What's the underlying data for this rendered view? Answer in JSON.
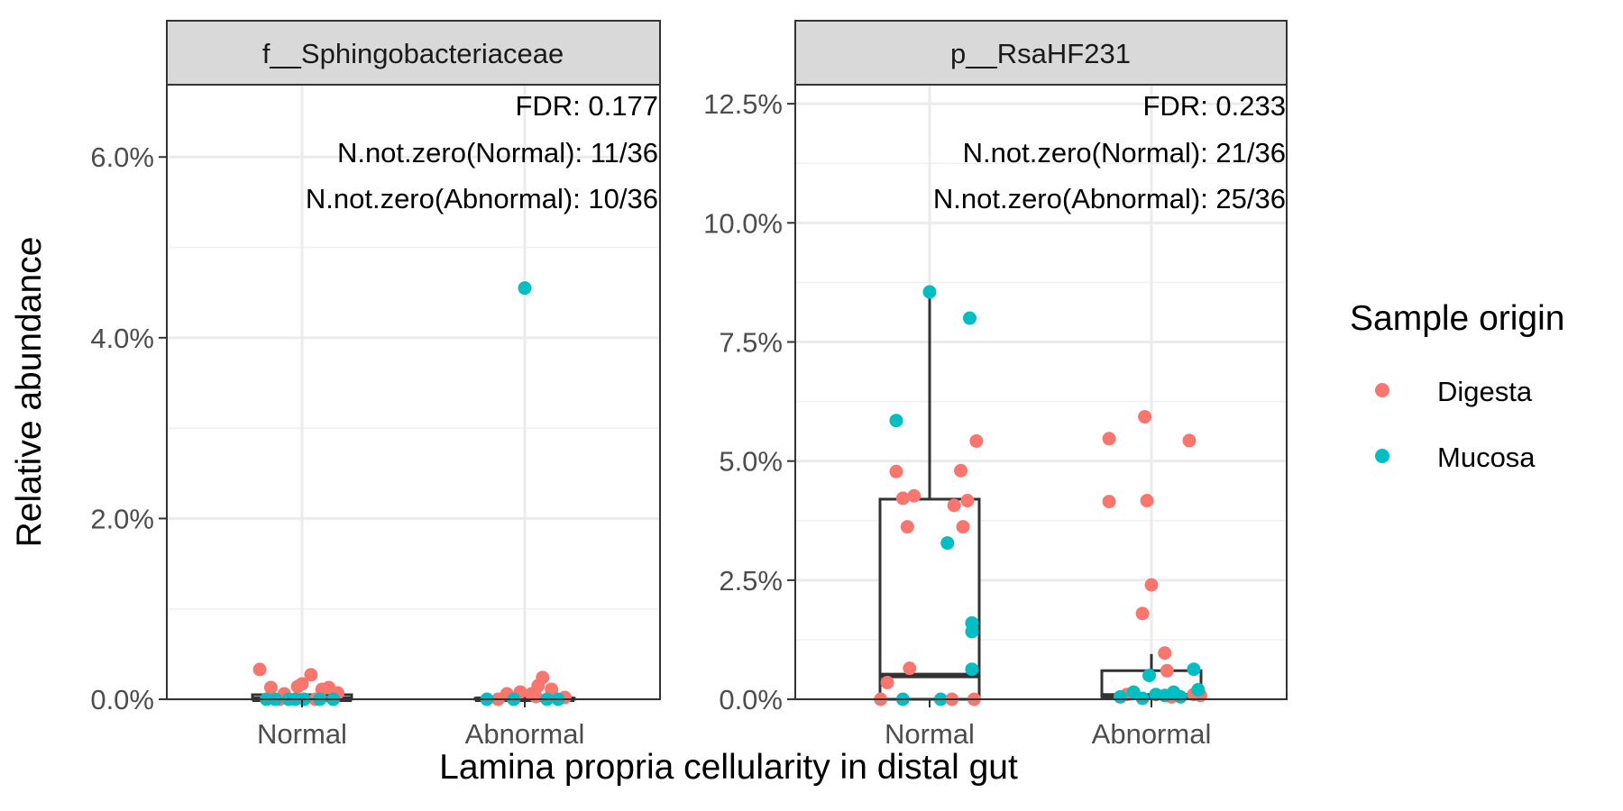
{
  "chart_data": {
    "type": "box",
    "xlabel": "Lamina propria cellularity in distal gut",
    "ylabel": "Relative abundance",
    "categories": [
      "Normal",
      "Abnormal"
    ],
    "legend": {
      "title": "Sample origin",
      "position": "right",
      "entries": [
        {
          "name": "Digesta",
          "color": "#F8766D"
        },
        {
          "name": "Mucosa",
          "color": "#00BFC4"
        }
      ]
    },
    "grid": true,
    "panels": [
      {
        "strip": "f__Sphingobacteriaceae",
        "annotations": [
          "FDR: 0.177",
          "N.not.zero(Normal): 11/36",
          "N.not.zero(Abnormal): 10/36"
        ],
        "ylim": [
          0,
          6.8
        ],
        "yticks": [
          0,
          2,
          4,
          6
        ],
        "ytick_labels": [
          "0.0%",
          "2.0%",
          "4.0%",
          "6.0%"
        ],
        "boxes": [
          {
            "category": "Normal",
            "q1": 0,
            "median": 0,
            "q3": 0.05,
            "whisker_low": 0,
            "whisker_high": 0.05
          },
          {
            "category": "Abnormal",
            "q1": 0,
            "median": 0,
            "q3": 0.01,
            "whisker_low": 0,
            "whisker_high": 0.01
          }
        ],
        "points": [
          {
            "category": "Normal",
            "origin": "Digesta",
            "dx": -0.19,
            "y": 0.33
          },
          {
            "category": "Normal",
            "origin": "Digesta",
            "dx": -0.14,
            "y": 0.13
          },
          {
            "category": "Normal",
            "origin": "Digesta",
            "dx": -0.08,
            "y": 0.06
          },
          {
            "category": "Normal",
            "origin": "Digesta",
            "dx": -0.02,
            "y": 0.14
          },
          {
            "category": "Normal",
            "origin": "Digesta",
            "dx": 0.0,
            "y": 0.17
          },
          {
            "category": "Normal",
            "origin": "Digesta",
            "dx": 0.04,
            "y": 0.27
          },
          {
            "category": "Normal",
            "origin": "Digesta",
            "dx": 0.09,
            "y": 0.11
          },
          {
            "category": "Normal",
            "origin": "Digesta",
            "dx": 0.12,
            "y": 0.13
          },
          {
            "category": "Normal",
            "origin": "Digesta",
            "dx": 0.16,
            "y": 0.07
          },
          {
            "category": "Normal",
            "origin": "Digesta",
            "dx": -0.1,
            "y": 0.0
          },
          {
            "category": "Normal",
            "origin": "Digesta",
            "dx": 0.06,
            "y": 0.0
          },
          {
            "category": "Normal",
            "origin": "Mucosa",
            "dx": -0.16,
            "y": 0.0
          },
          {
            "category": "Normal",
            "origin": "Mucosa",
            "dx": -0.12,
            "y": 0.0
          },
          {
            "category": "Normal",
            "origin": "Mucosa",
            "dx": -0.06,
            "y": 0.0
          },
          {
            "category": "Normal",
            "origin": "Mucosa",
            "dx": -0.03,
            "y": 0.0
          },
          {
            "category": "Normal",
            "origin": "Mucosa",
            "dx": 0.01,
            "y": 0.0
          },
          {
            "category": "Normal",
            "origin": "Mucosa",
            "dx": 0.08,
            "y": 0.0
          },
          {
            "category": "Normal",
            "origin": "Mucosa",
            "dx": 0.14,
            "y": 0.0
          },
          {
            "category": "Abnormal",
            "origin": "Mucosa",
            "dx": 0.0,
            "y": 4.55
          },
          {
            "category": "Abnormal",
            "origin": "Digesta",
            "dx": -0.08,
            "y": 0.06
          },
          {
            "category": "Abnormal",
            "origin": "Digesta",
            "dx": -0.02,
            "y": 0.08
          },
          {
            "category": "Abnormal",
            "origin": "Digesta",
            "dx": 0.03,
            "y": 0.06
          },
          {
            "category": "Abnormal",
            "origin": "Digesta",
            "dx": 0.06,
            "y": 0.15
          },
          {
            "category": "Abnormal",
            "origin": "Digesta",
            "dx": 0.08,
            "y": 0.24
          },
          {
            "category": "Abnormal",
            "origin": "Digesta",
            "dx": 0.12,
            "y": 0.11
          },
          {
            "category": "Abnormal",
            "origin": "Digesta",
            "dx": 0.05,
            "y": 0.03
          },
          {
            "category": "Abnormal",
            "origin": "Digesta",
            "dx": -0.12,
            "y": 0.0
          },
          {
            "category": "Abnormal",
            "origin": "Digesta",
            "dx": 0.18,
            "y": 0.02
          },
          {
            "category": "Abnormal",
            "origin": "Mucosa",
            "dx": -0.17,
            "y": 0.0
          },
          {
            "category": "Abnormal",
            "origin": "Mucosa",
            "dx": -0.05,
            "y": 0.0
          },
          {
            "category": "Abnormal",
            "origin": "Mucosa",
            "dx": 0.1,
            "y": 0.0
          },
          {
            "category": "Abnormal",
            "origin": "Mucosa",
            "dx": 0.15,
            "y": 0.0
          }
        ]
      },
      {
        "strip": "p__RsaHF231",
        "annotations": [
          "FDR: 0.233",
          "N.not.zero(Normal): 21/36",
          "N.not.zero(Abnormal): 25/36"
        ],
        "ylim": [
          0,
          12.9
        ],
        "yticks": [
          0,
          2.5,
          5,
          7.5,
          10,
          12.5
        ],
        "ytick_labels": [
          "0.0%",
          "2.5%",
          "5.0%",
          "7.5%",
          "10.0%",
          "12.5%"
        ],
        "boxes": [
          {
            "category": "Normal",
            "q1": 0,
            "median": 0.5,
            "q3": 4.2,
            "whisker_low": 0,
            "whisker_high": 8.55
          },
          {
            "category": "Abnormal",
            "q1": 0.05,
            "median": 0.07,
            "q3": 0.6,
            "whisker_low": 0,
            "whisker_high": 0.95
          }
        ],
        "points": [
          {
            "category": "Normal",
            "origin": "Mucosa",
            "dx": 0.0,
            "y": 8.55
          },
          {
            "category": "Normal",
            "origin": "Mucosa",
            "dx": 0.18,
            "y": 8.0
          },
          {
            "category": "Normal",
            "origin": "Mucosa",
            "dx": -0.15,
            "y": 5.85
          },
          {
            "category": "Normal",
            "origin": "Mucosa",
            "dx": 0.08,
            "y": 3.28
          },
          {
            "category": "Normal",
            "origin": "Mucosa",
            "dx": 0.19,
            "y": 1.6
          },
          {
            "category": "Normal",
            "origin": "Mucosa",
            "dx": 0.19,
            "y": 1.42
          },
          {
            "category": "Normal",
            "origin": "Mucosa",
            "dx": 0.19,
            "y": 0.63
          },
          {
            "category": "Normal",
            "origin": "Mucosa",
            "dx": -0.12,
            "y": 0.0
          },
          {
            "category": "Normal",
            "origin": "Mucosa",
            "dx": 0.05,
            "y": 0.0
          },
          {
            "category": "Normal",
            "origin": "Digesta",
            "dx": 0.21,
            "y": 5.42
          },
          {
            "category": "Normal",
            "origin": "Digesta",
            "dx": -0.15,
            "y": 4.78
          },
          {
            "category": "Normal",
            "origin": "Digesta",
            "dx": 0.14,
            "y": 4.8
          },
          {
            "category": "Normal",
            "origin": "Digesta",
            "dx": -0.12,
            "y": 4.22
          },
          {
            "category": "Normal",
            "origin": "Digesta",
            "dx": -0.07,
            "y": 4.27
          },
          {
            "category": "Normal",
            "origin": "Digesta",
            "dx": 0.17,
            "y": 4.17
          },
          {
            "category": "Normal",
            "origin": "Digesta",
            "dx": 0.11,
            "y": 4.07
          },
          {
            "category": "Normal",
            "origin": "Digesta",
            "dx": -0.1,
            "y": 3.62
          },
          {
            "category": "Normal",
            "origin": "Digesta",
            "dx": 0.15,
            "y": 3.62
          },
          {
            "category": "Normal",
            "origin": "Digesta",
            "dx": -0.09,
            "y": 0.65
          },
          {
            "category": "Normal",
            "origin": "Digesta",
            "dx": -0.19,
            "y": 0.35
          },
          {
            "category": "Normal",
            "origin": "Digesta",
            "dx": -0.22,
            "y": 0.0
          },
          {
            "category": "Normal",
            "origin": "Digesta",
            "dx": 0.1,
            "y": 0.0
          },
          {
            "category": "Normal",
            "origin": "Digesta",
            "dx": 0.2,
            "y": 0.0
          },
          {
            "category": "Abnormal",
            "origin": "Digesta",
            "dx": -0.19,
            "y": 5.47
          },
          {
            "category": "Abnormal",
            "origin": "Digesta",
            "dx": -0.03,
            "y": 5.93
          },
          {
            "category": "Abnormal",
            "origin": "Digesta",
            "dx": 0.17,
            "y": 5.43
          },
          {
            "category": "Abnormal",
            "origin": "Digesta",
            "dx": -0.19,
            "y": 4.15
          },
          {
            "category": "Abnormal",
            "origin": "Digesta",
            "dx": -0.02,
            "y": 4.17
          },
          {
            "category": "Abnormal",
            "origin": "Digesta",
            "dx": 0.0,
            "y": 2.4
          },
          {
            "category": "Abnormal",
            "origin": "Digesta",
            "dx": -0.04,
            "y": 1.8
          },
          {
            "category": "Abnormal",
            "origin": "Digesta",
            "dx": 0.06,
            "y": 0.97
          },
          {
            "category": "Abnormal",
            "origin": "Digesta",
            "dx": 0.07,
            "y": 0.6
          },
          {
            "category": "Abnormal",
            "origin": "Digesta",
            "dx": -0.11,
            "y": 0.1
          },
          {
            "category": "Abnormal",
            "origin": "Digesta",
            "dx": 0.19,
            "y": 0.1
          },
          {
            "category": "Abnormal",
            "origin": "Digesta",
            "dx": 0.22,
            "y": 0.08
          },
          {
            "category": "Abnormal",
            "origin": "Digesta",
            "dx": 0.09,
            "y": 0.05
          },
          {
            "category": "Abnormal",
            "origin": "Mucosa",
            "dx": 0.19,
            "y": 0.63
          },
          {
            "category": "Abnormal",
            "origin": "Mucosa",
            "dx": -0.01,
            "y": 0.5
          },
          {
            "category": "Abnormal",
            "origin": "Mucosa",
            "dx": 0.21,
            "y": 0.2
          },
          {
            "category": "Abnormal",
            "origin": "Mucosa",
            "dx": 0.1,
            "y": 0.15
          },
          {
            "category": "Abnormal",
            "origin": "Mucosa",
            "dx": -0.08,
            "y": 0.15
          },
          {
            "category": "Abnormal",
            "origin": "Mucosa",
            "dx": 0.02,
            "y": 0.1
          },
          {
            "category": "Abnormal",
            "origin": "Mucosa",
            "dx": 0.06,
            "y": 0.08
          },
          {
            "category": "Abnormal",
            "origin": "Mucosa",
            "dx": -0.14,
            "y": 0.05
          },
          {
            "category": "Abnormal",
            "origin": "Mucosa",
            "dx": 0.13,
            "y": 0.05
          },
          {
            "category": "Abnormal",
            "origin": "Mucosa",
            "dx": -0.04,
            "y": 0.02
          }
        ]
      }
    ]
  }
}
